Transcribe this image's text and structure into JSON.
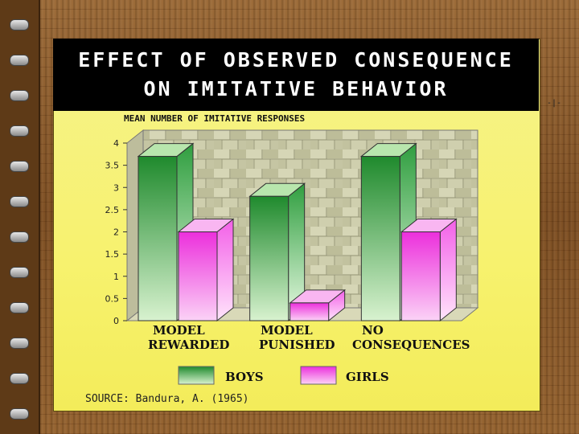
{
  "slide": {
    "title_line1": "EFFECT OF OBSERVED CONSEQUENCE",
    "title_line2": "ON IMITATIVE BEHAVIOR",
    "source": "SOURCE:  Bandura, A. (1965)",
    "side_mark": "-|-"
  },
  "colors": {
    "boys": "#2e9a3c",
    "girls": "#f03ce0",
    "background": "#f6f06c",
    "header": "#000000"
  },
  "chart_data": {
    "type": "bar",
    "title": "",
    "ylabel": "MEAN NUMBER OF IMITATIVE RESPONSES",
    "xlabel": "",
    "categories": [
      [
        "MODEL",
        "REWARDED"
      ],
      [
        "MODEL",
        "PUNISHED"
      ],
      [
        "NO",
        "CONSEQUENCES"
      ]
    ],
    "series": [
      {
        "name": "BOYS",
        "values": [
          3.7,
          2.8,
          3.7
        ]
      },
      {
        "name": "GIRLS",
        "values": [
          2.0,
          0.4,
          2.0
        ]
      }
    ],
    "ylim": [
      0,
      4
    ],
    "yticks": [
      "0",
      "0.5",
      "1",
      "1.5",
      "2",
      "2.5",
      "3",
      "3.5",
      "4"
    ],
    "grid": true,
    "style": "3d",
    "legend": "bottom"
  }
}
